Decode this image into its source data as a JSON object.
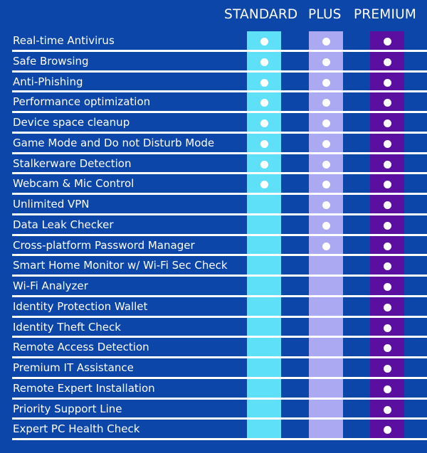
{
  "plans": [
    {
      "key": "standard",
      "label": "STANDARD",
      "color": "#5fe0f9"
    },
    {
      "key": "plus",
      "label": "PLUS",
      "color": "#aba9f2"
    },
    {
      "key": "premium",
      "label": "PREMIUM",
      "color": "#5a0fa0"
    }
  ],
  "colors": {
    "background": "#0b46a8",
    "separator": "#ffffff",
    "dot": "#ffffff"
  },
  "features": [
    {
      "label": "Real-time Antivirus",
      "standard": true,
      "plus": true,
      "premium": true
    },
    {
      "label": "Safe Browsing",
      "standard": true,
      "plus": true,
      "premium": true
    },
    {
      "label": "Anti-Phishing",
      "standard": true,
      "plus": true,
      "premium": true
    },
    {
      "label": "Performance optimization",
      "standard": true,
      "plus": true,
      "premium": true
    },
    {
      "label": "Device space cleanup",
      "standard": true,
      "plus": true,
      "premium": true
    },
    {
      "label": "Game Mode and Do not Disturb Mode",
      "standard": true,
      "plus": true,
      "premium": true
    },
    {
      "label": "Stalkerware Detection",
      "standard": true,
      "plus": true,
      "premium": true
    },
    {
      "label": "Webcam & Mic Control",
      "standard": true,
      "plus": true,
      "premium": true
    },
    {
      "label": "Unlimited VPN",
      "standard": false,
      "plus": true,
      "premium": true
    },
    {
      "label": "Data Leak Checker",
      "standard": false,
      "plus": true,
      "premium": true
    },
    {
      "label": "Cross-platform Password Manager",
      "standard": false,
      "plus": true,
      "premium": true
    },
    {
      "label": "Smart Home Monitor w/ Wi-Fi Sec Check",
      "standard": false,
      "plus": false,
      "premium": true
    },
    {
      "label": "Wi-Fi Analyzer",
      "standard": false,
      "plus": false,
      "premium": true
    },
    {
      "label": "Identity Protection Wallet",
      "standard": false,
      "plus": false,
      "premium": true
    },
    {
      "label": "Identity Theft Check",
      "standard": false,
      "plus": false,
      "premium": true
    },
    {
      "label": "Remote Access Detection",
      "standard": false,
      "plus": false,
      "premium": true
    },
    {
      "label": "Premium IT Assistance",
      "standard": false,
      "plus": false,
      "premium": true
    },
    {
      "label": "Remote Expert Installation",
      "standard": false,
      "plus": false,
      "premium": true
    },
    {
      "label": "Priority Support Line",
      "standard": false,
      "plus": false,
      "premium": true
    },
    {
      "label": "Expert PC Health Check",
      "standard": false,
      "plus": false,
      "premium": true
    }
  ]
}
